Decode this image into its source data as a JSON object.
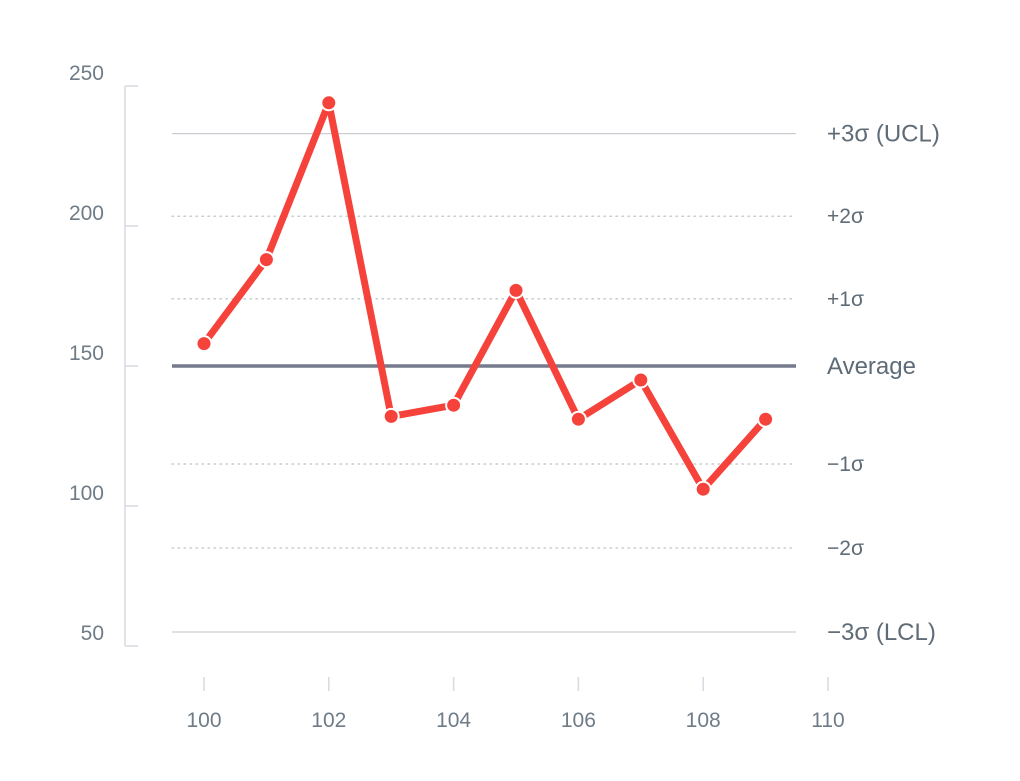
{
  "chart_data": {
    "type": "line",
    "title": "",
    "xlabel": "",
    "ylabel": "",
    "xlim": [
      100,
      110
    ],
    "ylim": [
      50,
      250
    ],
    "x_ticks": [
      100,
      102,
      104,
      106,
      108,
      110
    ],
    "x_tick_labels": [
      "100",
      "102",
      "104",
      "106",
      "108",
      "110"
    ],
    "y_ticks": [
      50,
      100,
      150,
      200,
      250
    ],
    "y_tick_labels": [
      "50",
      "100",
      "150",
      "200",
      "250"
    ],
    "grid": false,
    "series": [
      {
        "x": [
          100,
          101,
          102,
          103,
          104,
          105,
          106,
          107,
          108,
          109
        ],
        "y": [
          158,
          188,
          244,
          132,
          136,
          177,
          131,
          145,
          106,
          131
        ],
        "color": "#f5423a"
      }
    ],
    "control_lines": [
      {
        "label": "+3σ (UCL)",
        "value": 233,
        "style": "solid-thin"
      },
      {
        "label": "+2σ",
        "value": 203.5,
        "style": "dotted"
      },
      {
        "label": "+1σ",
        "value": 174,
        "style": "dotted"
      },
      {
        "label": "Average",
        "value": 150,
        "style": "solid-thick"
      },
      {
        "label": "−1σ",
        "value": 115,
        "style": "dotted"
      },
      {
        "label": "−2σ",
        "value": 85,
        "style": "dotted"
      },
      {
        "label": "−3σ (LCL)",
        "value": 55,
        "style": "solid-thin"
      }
    ],
    "colors": {
      "series": "#f5423a",
      "average": "#757a8c",
      "limit": "#c9ced3",
      "sigma": "#c9ced3",
      "axis": "#d6dbe0",
      "text": "#6f7c87"
    }
  }
}
